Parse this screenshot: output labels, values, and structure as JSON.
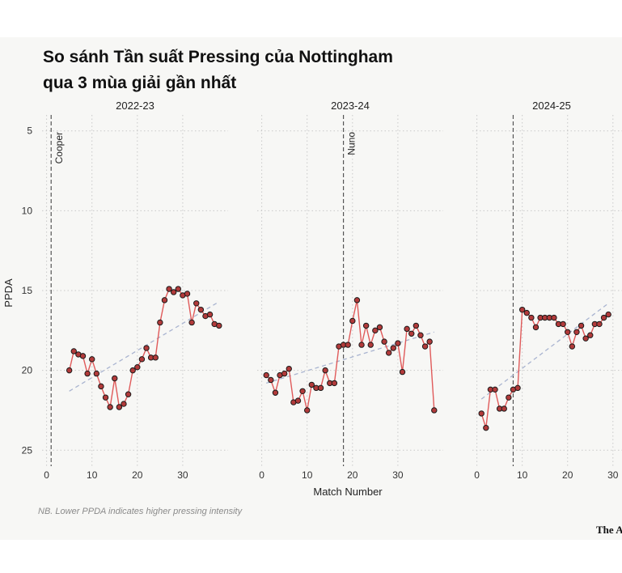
{
  "title_lines": [
    "So sánh Tần suất Pressing của Nottingham",
    "qua 3 mùa giải gần nhất"
  ],
  "note": "NB. Lower PPDA indicates higher pressing intensity",
  "brand": "The A",
  "colors": {
    "line": "#e05a5a",
    "marker_fill": "#b23a3a",
    "marker_edge": "#1a1a1a",
    "trend": "#a9b4d0",
    "grid": "#c9c9c9",
    "vline": "#555555"
  },
  "chart_data": {
    "type": "line",
    "ylabel": "PPDA",
    "xlabel": "Match Number",
    "y_inverted": true,
    "ylim": [
      26,
      4
    ],
    "yticks": [
      5,
      10,
      15,
      20,
      25
    ],
    "panels": [
      {
        "title": "2022-23",
        "xlim": [
          -1,
          40
        ],
        "xticks": [
          0,
          10,
          20,
          30
        ],
        "manager": {
          "name": "Cooper",
          "match": 1
        },
        "x": [
          5,
          6,
          7,
          8,
          9,
          10,
          11,
          12,
          13,
          14,
          15,
          16,
          17,
          18,
          19,
          20,
          21,
          22,
          23,
          24,
          25,
          26,
          27,
          28,
          29,
          30,
          31,
          32,
          33,
          34,
          35,
          36,
          37,
          38
        ],
        "y": [
          20.0,
          18.8,
          19.0,
          19.1,
          20.2,
          19.3,
          20.2,
          21.0,
          21.7,
          22.3,
          20.5,
          22.3,
          22.1,
          21.5,
          20.0,
          19.8,
          19.3,
          18.6,
          19.2,
          19.2,
          17.0,
          15.6,
          14.9,
          15.1,
          14.9,
          15.3,
          15.2,
          17.0,
          15.8,
          16.2,
          16.6,
          16.5,
          17.1,
          17.2
        ],
        "trend": [
          [
            5,
            21.3
          ],
          [
            38,
            15.7
          ]
        ]
      },
      {
        "title": "2023-24",
        "xlim": [
          -1,
          40
        ],
        "xticks": [
          0,
          10,
          20,
          30
        ],
        "manager": {
          "name": "Nuno",
          "match": 18
        },
        "x": [
          1,
          2,
          3,
          4,
          5,
          6,
          7,
          8,
          9,
          10,
          11,
          12,
          13,
          14,
          15,
          16,
          17,
          18,
          19,
          20,
          21,
          22,
          23,
          24,
          25,
          26,
          27,
          28,
          29,
          30,
          31,
          32,
          33,
          34,
          35,
          36,
          37,
          38
        ],
        "y": [
          20.3,
          20.6,
          21.4,
          20.3,
          20.2,
          19.9,
          22.0,
          21.9,
          21.3,
          22.5,
          20.9,
          21.1,
          21.1,
          20.0,
          20.8,
          20.8,
          18.5,
          18.4,
          18.4,
          16.9,
          15.6,
          18.4,
          17.2,
          18.4,
          17.5,
          17.3,
          18.2,
          18.9,
          18.6,
          18.3,
          20.1,
          17.4,
          17.7,
          17.2,
          17.8,
          18.5,
          18.2,
          22.5
        ],
        "trend": [
          [
            1,
            20.8
          ],
          [
            38,
            17.6
          ]
        ]
      },
      {
        "title": "2024-25",
        "xlim": [
          -1,
          32
        ],
        "xticks": [
          0,
          10,
          20,
          30
        ],
        "manager": {
          "name": "",
          "match": 8
        },
        "x": [
          1,
          2,
          3,
          4,
          5,
          6,
          7,
          8,
          9,
          10,
          11,
          12,
          13,
          14,
          15,
          16,
          17,
          18,
          19,
          20,
          21,
          22,
          23,
          24,
          25,
          26,
          27,
          28,
          29
        ],
        "y": [
          22.7,
          23.6,
          21.2,
          21.2,
          22.4,
          22.4,
          21.7,
          21.2,
          21.1,
          16.2,
          16.4,
          16.7,
          17.3,
          16.7,
          16.7,
          16.7,
          16.7,
          17.1,
          17.1,
          17.6,
          18.5,
          17.6,
          17.2,
          18.0,
          17.8,
          17.1,
          17.1,
          16.7,
          16.5
        ],
        "trend": [
          [
            1,
            21.8
          ],
          [
            29,
            15.8
          ]
        ]
      }
    ]
  }
}
